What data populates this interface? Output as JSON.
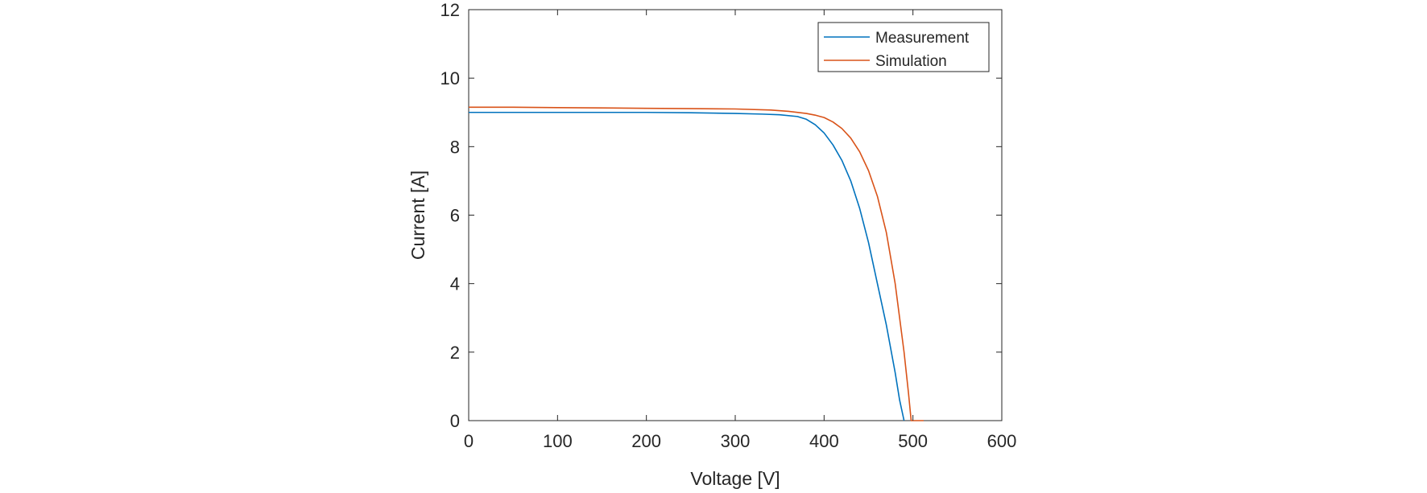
{
  "chart_data": {
    "type": "line",
    "title": "",
    "xlabel": "Voltage [V]",
    "ylabel": "Current [A]",
    "xlim": [
      0,
      600
    ],
    "ylim": [
      0,
      12
    ],
    "xticks": [
      0,
      100,
      200,
      300,
      400,
      500,
      600
    ],
    "yticks": [
      0,
      2,
      4,
      6,
      8,
      10,
      12
    ],
    "grid": false,
    "legend_position": "top-right",
    "series": [
      {
        "name": "Measurement",
        "color": "#0072BD",
        "x": [
          0,
          50,
          100,
          150,
          200,
          250,
          300,
          330,
          350,
          370,
          380,
          390,
          400,
          410,
          420,
          430,
          440,
          450,
          460,
          470,
          480,
          485,
          490
        ],
        "y": [
          9.0,
          9.0,
          9.0,
          9.0,
          9.0,
          8.99,
          8.97,
          8.95,
          8.93,
          8.88,
          8.8,
          8.64,
          8.4,
          8.05,
          7.6,
          7.0,
          6.2,
          5.2,
          4.0,
          2.8,
          1.4,
          0.6,
          0.0
        ]
      },
      {
        "name": "Simulation",
        "color": "#D95319",
        "x": [
          0,
          50,
          100,
          150,
          200,
          250,
          300,
          340,
          360,
          380,
          390,
          400,
          410,
          420,
          430,
          440,
          450,
          460,
          470,
          480,
          490,
          495,
          498,
          505,
          512
        ],
        "y": [
          9.15,
          9.15,
          9.14,
          9.13,
          9.12,
          9.11,
          9.1,
          9.07,
          9.03,
          8.97,
          8.92,
          8.85,
          8.72,
          8.53,
          8.25,
          7.85,
          7.3,
          6.55,
          5.5,
          4.0,
          2.0,
          0.8,
          0.0,
          0.0,
          0.0
        ]
      }
    ]
  }
}
